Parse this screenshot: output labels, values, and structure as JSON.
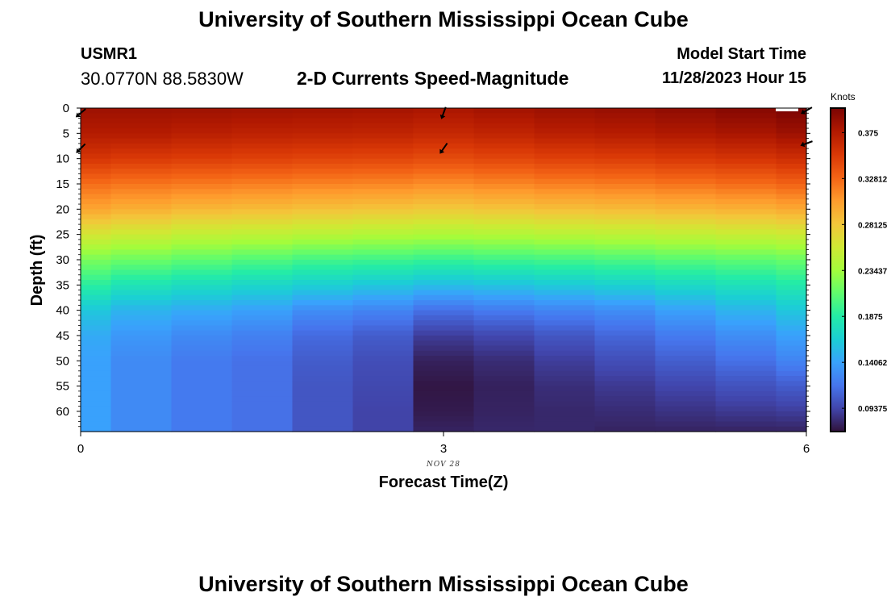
{
  "header": {
    "title": "University of Southern Mississippi Ocean Cube",
    "station": "USMR1",
    "coords": "30.0770N  88.5830W",
    "subtitle": "2-D Currents Speed-Magnitude",
    "model_start_label": "Model Start Time",
    "model_start_value": "11/28/2023 Hour 15"
  },
  "footer": {
    "title": "University of Southern Mississippi Ocean Cube"
  },
  "chart_data": {
    "type": "heatmap",
    "title": "2-D Currents Speed-Magnitude",
    "xlabel": "Forecast Time(Z)",
    "ylabel": "Depth (ft)",
    "x_date_label": "NOV 28",
    "xlim": [
      0,
      6
    ],
    "ylim": [
      0,
      64
    ],
    "x_ticks": [
      0,
      3,
      6
    ],
    "x_tick_labels": [
      "0",
      "3",
      "6"
    ],
    "y_ticks": [
      0,
      5,
      10,
      15,
      20,
      25,
      30,
      35,
      40,
      45,
      50,
      55,
      60
    ],
    "y_tick_labels": [
      "0",
      "5",
      "10",
      "15",
      "20",
      "25",
      "30",
      "35",
      "40",
      "45",
      "50",
      "55",
      "60"
    ],
    "colorbar": {
      "label": "Knots",
      "range": [
        0.07,
        0.4
      ],
      "tick_values": [
        0.09375,
        0.140625,
        0.1875,
        0.234375,
        0.28125,
        0.328125,
        0.375
      ],
      "tick_labels": [
        "0.09375",
        "0.140625",
        "0.1875",
        "0.234375",
        "0.28125",
        "0.328125",
        "0.375"
      ],
      "colors": [
        "#30123b",
        "#4145ab",
        "#4675ed",
        "#39a2fc",
        "#1bcfd4",
        "#24eca6",
        "#61fc6c",
        "#a4fc3b",
        "#d1e834",
        "#f3c63a",
        "#fe9b2d",
        "#f36315",
        "#d93806",
        "#b11901",
        "#7a0403"
      ]
    },
    "time_columns": [
      0,
      0.25,
      0.75,
      1.25,
      1.75,
      2.25,
      2.75,
      3.25,
      3.75,
      4.25,
      4.75,
      5.25,
      5.75,
      6
    ],
    "profile_depths": [
      0,
      5,
      10,
      15,
      20,
      25,
      30,
      35,
      40,
      45,
      50,
      55,
      60,
      64
    ],
    "speed_profiles": [
      [
        0.385,
        0.375,
        0.355,
        0.325,
        0.3,
        0.26,
        0.22,
        0.19,
        0.16,
        0.145,
        0.14,
        0.14,
        0.14,
        0.14
      ],
      [
        0.385,
        0.375,
        0.352,
        0.322,
        0.295,
        0.255,
        0.215,
        0.18,
        0.15,
        0.135,
        0.128,
        0.128,
        0.128,
        0.128
      ],
      [
        0.385,
        0.372,
        0.35,
        0.32,
        0.29,
        0.25,
        0.21,
        0.175,
        0.145,
        0.128,
        0.12,
        0.12,
        0.12,
        0.12
      ],
      [
        0.384,
        0.37,
        0.348,
        0.318,
        0.288,
        0.248,
        0.205,
        0.17,
        0.14,
        0.123,
        0.115,
        0.115,
        0.115,
        0.115
      ],
      [
        0.383,
        0.369,
        0.346,
        0.316,
        0.285,
        0.245,
        0.2,
        0.165,
        0.13,
        0.112,
        0.105,
        0.102,
        0.102,
        0.102
      ],
      [
        0.382,
        0.368,
        0.345,
        0.315,
        0.283,
        0.242,
        0.198,
        0.16,
        0.125,
        0.105,
        0.098,
        0.095,
        0.093,
        0.093
      ],
      [
        0.38,
        0.365,
        0.342,
        0.312,
        0.28,
        0.24,
        0.195,
        0.155,
        0.115,
        0.09,
        0.077,
        0.072,
        0.074,
        0.078
      ],
      [
        0.383,
        0.368,
        0.345,
        0.315,
        0.283,
        0.242,
        0.198,
        0.158,
        0.12,
        0.095,
        0.082,
        0.077,
        0.078,
        0.08
      ],
      [
        0.386,
        0.372,
        0.348,
        0.318,
        0.286,
        0.245,
        0.2,
        0.162,
        0.125,
        0.102,
        0.09,
        0.083,
        0.08,
        0.08
      ],
      [
        0.388,
        0.374,
        0.35,
        0.32,
        0.288,
        0.247,
        0.203,
        0.166,
        0.13,
        0.11,
        0.098,
        0.088,
        0.082,
        0.078
      ],
      [
        0.391,
        0.377,
        0.353,
        0.323,
        0.291,
        0.25,
        0.207,
        0.172,
        0.14,
        0.12,
        0.106,
        0.094,
        0.085,
        0.078
      ],
      [
        0.395,
        0.38,
        0.356,
        0.326,
        0.294,
        0.253,
        0.21,
        0.178,
        0.15,
        0.13,
        0.115,
        0.1,
        0.088,
        0.078
      ],
      [
        0.4,
        0.385,
        0.36,
        0.33,
        0.298,
        0.256,
        0.214,
        0.185,
        0.16,
        0.14,
        0.125,
        0.105,
        0.09,
        0.078
      ]
    ],
    "vectors": [
      {
        "t": 0,
        "depth": 1,
        "angle_deg": 230
      },
      {
        "t": 0,
        "depth": 8,
        "angle_deg": 225
      },
      {
        "t": 3,
        "depth": 1,
        "angle_deg": 200
      },
      {
        "t": 3,
        "depth": 8,
        "angle_deg": 215
      },
      {
        "t": 6,
        "depth": 0.5,
        "angle_deg": 240
      },
      {
        "t": 6,
        "depth": 7,
        "angle_deg": 250
      }
    ],
    "grid": false
  }
}
